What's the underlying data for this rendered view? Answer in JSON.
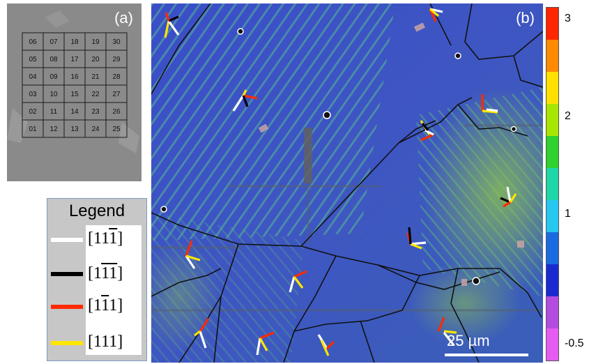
{
  "panel_a": {
    "label": "(a)",
    "grid_rows": [
      [
        "06",
        "07",
        "18",
        "19",
        "30"
      ],
      [
        "05",
        "08",
        "17",
        "20",
        "29"
      ],
      [
        "04",
        "09",
        "16",
        "21",
        "28"
      ],
      [
        "03",
        "10",
        "15",
        "22",
        "27"
      ],
      [
        "02",
        "11",
        "14",
        "23",
        "26"
      ],
      [
        "01",
        "12",
        "13",
        "24",
        "25"
      ]
    ]
  },
  "panel_b": {
    "label": "(b)",
    "scale_bar_label": "25 µm"
  },
  "legend": {
    "title": "Legend",
    "entries": [
      {
        "color": "#ffffff",
        "index_text": "[11",
        "bar_digit": "1",
        "close": "]"
      },
      {
        "color": "#000000",
        "index_text": "[1",
        "bar_digit": "1",
        "mid": "1",
        "close": "]"
      },
      {
        "color": "#ff2a00",
        "index_text": "[1",
        "bar_digit": "1",
        "close": "1]"
      },
      {
        "color": "#ffe600",
        "index_text": "[111]"
      }
    ]
  },
  "colorbar": {
    "tick_labels": [
      "3",
      "2",
      "1",
      "-0.5"
    ],
    "colors": [
      "#ff2600",
      "#ff8a00",
      "#ffe000",
      "#a8e600",
      "#2ed12e",
      "#1ed6a8",
      "#26c8f0",
      "#1a6be0",
      "#1a2ad0",
      "#b44ce0",
      "#e65cf0"
    ]
  }
}
